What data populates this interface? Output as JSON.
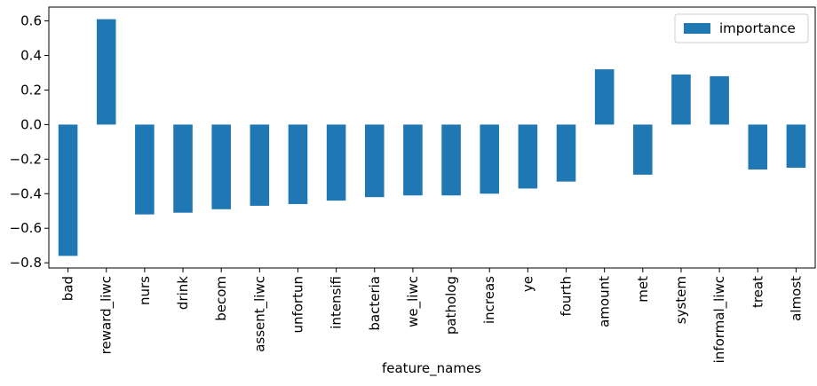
{
  "chart_data": {
    "type": "bar",
    "categories": [
      "bad",
      "reward_liwc",
      "nurs",
      "drink",
      "becom",
      "assent_liwc",
      "unfortun",
      "intensifi",
      "bacteria",
      "we_liwc",
      "patholog",
      "increas",
      "ye",
      "fourth",
      "amount",
      "met",
      "system",
      "informal_liwc",
      "treat",
      "almost"
    ],
    "series": [
      {
        "name": "importance",
        "color": "#1f77b4",
        "values": [
          -0.76,
          0.61,
          -0.52,
          -0.51,
          -0.49,
          -0.47,
          -0.46,
          -0.44,
          -0.42,
          -0.41,
          -0.41,
          -0.4,
          -0.37,
          -0.33,
          0.32,
          -0.29,
          0.29,
          0.28,
          -0.26,
          -0.25
        ]
      }
    ],
    "xlabel": "feature_names",
    "ylim": [
      -0.83,
      0.68
    ],
    "yticks": [
      {
        "value": -0.8,
        "label": "−0.8"
      },
      {
        "value": -0.6,
        "label": "−0.6"
      },
      {
        "value": -0.4,
        "label": "−0.4"
      },
      {
        "value": -0.2,
        "label": "−0.2"
      },
      {
        "value": 0.0,
        "label": "0.0"
      },
      {
        "value": 0.2,
        "label": "0.2"
      },
      {
        "value": 0.4,
        "label": "0.4"
      },
      {
        "value": 0.6,
        "label": "0.6"
      }
    ],
    "legend": "upper right"
  }
}
